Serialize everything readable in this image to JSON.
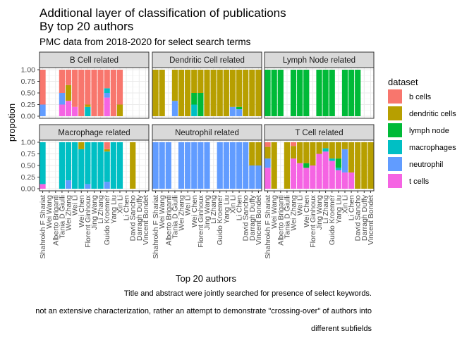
{
  "chart_data": {
    "type": "bar",
    "stacked": true,
    "title": "Additional layer of classification of publications\nBy top 20 authors",
    "subtitle": "PMC data from 2018-2020 for select search terms",
    "xlabel": "Top 20 authors",
    "ylabel": "propotion",
    "ylim": [
      0,
      1
    ],
    "yticks": [
      "0.00",
      "0.25",
      "0.50",
      "0.75",
      "1.00"
    ],
    "grid": true,
    "legend_position": "right",
    "legend_title": "dataset",
    "caption": [
      "Title and abstract were jointly searched for presence of select keywords.",
      "not an extensive characterization, rather an attempt to demonstrate \"crossing-over\" of authors into",
      "different subfields"
    ],
    "categories": [
      "Shahrokh F Shariat",
      "Wei Wang",
      "Alberto Briganti",
      "Tania D Giulli",
      "Wei Zhang",
      "Wei Li",
      "Wei Chen",
      "Florent Ginhoux",
      "Jing Wang",
      "Li Zhang",
      "Guido Kroemer",
      "Yang Liu",
      "Xin Li",
      "Li Chen",
      "David Sancho",
      "Darragh Duffy",
      "Vincent Bondet"
    ],
    "series_order": [
      "t cells",
      "neutrophil",
      "macrophages",
      "lymph node",
      "dendritic cells",
      "b cells"
    ],
    "colors": {
      "b cells": "#F8766D",
      "dendritic cells": "#B79F00",
      "lymph node": "#00BA38",
      "macrophages": "#00BFC4",
      "neutrophil": "#619CFF",
      "t cells": "#F564E3"
    },
    "panels": [
      {
        "title": "B Cell related",
        "bars": [
          {
            "t cells": 0,
            "neutrophil": 0.25,
            "macrophages": 0,
            "lymph node": 0,
            "dendritic cells": 0,
            "b cells": 0.75
          },
          null,
          null,
          {
            "t cells": 0.25,
            "neutrophil": 0.25,
            "macrophages": 0,
            "lymph node": 0,
            "dendritic cells": 0,
            "b cells": 0.5
          },
          {
            "t cells": 0.33,
            "neutrophil": 0,
            "macrophages": 0,
            "lymph node": 0,
            "dendritic cells": 0.34,
            "b cells": 0.33
          },
          {
            "t cells": 0.2,
            "neutrophil": 0,
            "macrophages": 0,
            "lymph node": 0,
            "dendritic cells": 0,
            "b cells": 0.8
          },
          {
            "t cells": 0,
            "neutrophil": 0,
            "macrophages": 0,
            "lymph node": 0,
            "dendritic cells": 0,
            "b cells": 1.0
          },
          {
            "t cells": 0,
            "neutrophil": 0,
            "macrophages": 0.2,
            "lymph node": 0,
            "dendritic cells": 0.05,
            "b cells": 0.75
          },
          {
            "t cells": 0,
            "neutrophil": 0,
            "macrophages": 0,
            "lymph node": 0,
            "dendritic cells": 0,
            "b cells": 1.0
          },
          {
            "t cells": 0,
            "neutrophil": 0,
            "macrophages": 0,
            "lymph node": 0,
            "dendritic cells": 0,
            "b cells": 1.0
          },
          {
            "t cells": 0.4,
            "neutrophil": 0.1,
            "macrophages": 0.1,
            "lymph node": 0,
            "dendritic cells": 0,
            "b cells": 0.4
          },
          {
            "t cells": 0,
            "neutrophil": 0,
            "macrophages": 0,
            "lymph node": 0,
            "dendritic cells": 0,
            "b cells": 1.0
          },
          {
            "t cells": 0,
            "neutrophil": 0,
            "macrophages": 0,
            "lymph node": 0,
            "dendritic cells": 0.25,
            "b cells": 0.75
          },
          null,
          null,
          null,
          null
        ]
      },
      {
        "title": "Dendritic Cell related",
        "bars": [
          {
            "t cells": 0,
            "neutrophil": 0,
            "macrophages": 0,
            "lymph node": 0,
            "dendritic cells": 1.0,
            "b cells": 0
          },
          {
            "t cells": 0,
            "neutrophil": 0,
            "macrophages": 0,
            "lymph node": 0,
            "dendritic cells": 1.0,
            "b cells": 0
          },
          null,
          {
            "t cells": 0,
            "neutrophil": 0.33,
            "macrophages": 0,
            "lymph node": 0,
            "dendritic cells": 0.67,
            "b cells": 0
          },
          {
            "t cells": 0,
            "neutrophil": 0,
            "macrophages": 0,
            "lymph node": 0,
            "dendritic cells": 1.0,
            "b cells": 0
          },
          {
            "t cells": 0,
            "neutrophil": 0,
            "macrophages": 0,
            "lymph node": 0,
            "dendritic cells": 1.0,
            "b cells": 0
          },
          {
            "t cells": 0,
            "neutrophil": 0,
            "macrophages": 0.25,
            "lymph node": 0.25,
            "dendritic cells": 0.5,
            "b cells": 0
          },
          {
            "t cells": 0,
            "neutrophil": 0,
            "macrophages": 0,
            "lymph node": 0.5,
            "dendritic cells": 0.5,
            "b cells": 0
          },
          {
            "t cells": 0,
            "neutrophil": 0,
            "macrophages": 0,
            "lymph node": 0,
            "dendritic cells": 1.0,
            "b cells": 0
          },
          {
            "t cells": 0,
            "neutrophil": 0,
            "macrophages": 0,
            "lymph node": 0,
            "dendritic cells": 1.0,
            "b cells": 0
          },
          {
            "t cells": 0,
            "neutrophil": 0,
            "macrophages": 0,
            "lymph node": 0,
            "dendritic cells": 1.0,
            "b cells": 0
          },
          {
            "t cells": 0,
            "neutrophil": 0,
            "macrophages": 0,
            "lymph node": 0,
            "dendritic cells": 1.0,
            "b cells": 0
          },
          {
            "t cells": 0,
            "neutrophil": 0.2,
            "macrophages": 0,
            "lymph node": 0,
            "dendritic cells": 0.8,
            "b cells": 0
          },
          {
            "t cells": 0,
            "neutrophil": 0.15,
            "macrophages": 0,
            "lymph node": 0.05,
            "dendritic cells": 0.8,
            "b cells": 0
          },
          {
            "t cells": 0,
            "neutrophil": 0,
            "macrophages": 0,
            "lymph node": 0,
            "dendritic cells": 1.0,
            "b cells": 0
          },
          {
            "t cells": 0,
            "neutrophil": 0,
            "macrophages": 0,
            "lymph node": 0,
            "dendritic cells": 1.0,
            "b cells": 0
          },
          {
            "t cells": 0,
            "neutrophil": 0,
            "macrophages": 0,
            "lymph node": 0,
            "dendritic cells": 1.0,
            "b cells": 0
          }
        ]
      },
      {
        "title": "Lymph Node related",
        "bars": [
          {
            "t cells": 0,
            "neutrophil": 0,
            "macrophages": 0,
            "lymph node": 1.0,
            "dendritic cells": 0,
            "b cells": 0
          },
          {
            "t cells": 0,
            "neutrophil": 0,
            "macrophages": 0,
            "lymph node": 1.0,
            "dendritic cells": 0,
            "b cells": 0
          },
          {
            "t cells": 0,
            "neutrophil": 0,
            "macrophages": 0,
            "lymph node": 1.0,
            "dendritic cells": 0,
            "b cells": 0
          },
          null,
          {
            "t cells": 0,
            "neutrophil": 0,
            "macrophages": 0,
            "lymph node": 1.0,
            "dendritic cells": 0,
            "b cells": 0
          },
          {
            "t cells": 0,
            "neutrophil": 0,
            "macrophages": 0,
            "lymph node": 1.0,
            "dendritic cells": 0,
            "b cells": 0
          },
          {
            "t cells": 0,
            "neutrophil": 0,
            "macrophages": 0,
            "lymph node": 1.0,
            "dendritic cells": 0,
            "b cells": 0
          },
          null,
          {
            "t cells": 0,
            "neutrophil": 0,
            "macrophages": 0,
            "lymph node": 1.0,
            "dendritic cells": 0,
            "b cells": 0
          },
          {
            "t cells": 0,
            "neutrophil": 0,
            "macrophages": 0,
            "lymph node": 1.0,
            "dendritic cells": 0,
            "b cells": 0
          },
          {
            "t cells": 0,
            "neutrophil": 0,
            "macrophages": 0,
            "lymph node": 1.0,
            "dendritic cells": 0,
            "b cells": 0
          },
          null,
          {
            "t cells": 0,
            "neutrophil": 0,
            "macrophages": 0,
            "lymph node": 1.0,
            "dendritic cells": 0,
            "b cells": 0
          },
          {
            "t cells": 0,
            "neutrophil": 0,
            "macrophages": 0,
            "lymph node": 1.0,
            "dendritic cells": 0,
            "b cells": 0
          },
          {
            "t cells": 0,
            "neutrophil": 0,
            "macrophages": 0,
            "lymph node": 1.0,
            "dendritic cells": 0,
            "b cells": 0
          },
          null,
          null
        ]
      },
      {
        "title": "Macrophage related",
        "bars": [
          {
            "t cells": 0.1,
            "neutrophil": 0,
            "macrophages": 0.9,
            "lymph node": 0,
            "dendritic cells": 0,
            "b cells": 0
          },
          null,
          null,
          {
            "t cells": 0,
            "neutrophil": 0,
            "macrophages": 1.0,
            "lymph node": 0,
            "dendritic cells": 0,
            "b cells": 0
          },
          {
            "t cells": 0,
            "neutrophil": 0.18,
            "macrophages": 0.82,
            "lymph node": 0,
            "dendritic cells": 0,
            "b cells": 0
          },
          {
            "t cells": 0,
            "neutrophil": 0,
            "macrophages": 1.0,
            "lymph node": 0,
            "dendritic cells": 0,
            "b cells": 0
          },
          {
            "t cells": 0,
            "neutrophil": 0,
            "macrophages": 0.85,
            "lymph node": 0,
            "dendritic cells": 0.15,
            "b cells": 0
          },
          {
            "t cells": 0,
            "neutrophil": 0.1,
            "macrophages": 0.9,
            "lymph node": 0,
            "dendritic cells": 0,
            "b cells": 0
          },
          {
            "t cells": 0,
            "neutrophil": 0,
            "macrophages": 1.0,
            "lymph node": 0,
            "dendritic cells": 0,
            "b cells": 0
          },
          {
            "t cells": 0,
            "neutrophil": 0,
            "macrophages": 1.0,
            "lymph node": 0,
            "dendritic cells": 0,
            "b cells": 0
          },
          {
            "t cells": 0,
            "neutrophil": 0.15,
            "macrophages": 0.65,
            "lymph node": 0,
            "dendritic cells": 0.05,
            "b cells": 0.15
          },
          {
            "t cells": 0,
            "neutrophil": 0,
            "macrophages": 1.0,
            "lymph node": 0,
            "dendritic cells": 0,
            "b cells": 0
          },
          {
            "t cells": 0,
            "neutrophil": 0,
            "macrophages": 1.0,
            "lymph node": 0,
            "dendritic cells": 0,
            "b cells": 0
          },
          null,
          {
            "t cells": 0,
            "neutrophil": 0,
            "macrophages": 0,
            "lymph node": 0,
            "dendritic cells": 1.0,
            "b cells": 0
          },
          null,
          null
        ]
      },
      {
        "title": "Neutrophil related",
        "bars": [
          {
            "t cells": 0,
            "neutrophil": 1.0,
            "macrophages": 0,
            "lymph node": 0,
            "dendritic cells": 0,
            "b cells": 0
          },
          {
            "t cells": 0,
            "neutrophil": 1.0,
            "macrophages": 0,
            "lymph node": 0,
            "dendritic cells": 0,
            "b cells": 0
          },
          {
            "t cells": 0,
            "neutrophil": 1.0,
            "macrophages": 0,
            "lymph node": 0,
            "dendritic cells": 0,
            "b cells": 0
          },
          null,
          {
            "t cells": 0,
            "neutrophil": 1.0,
            "macrophages": 0,
            "lymph node": 0,
            "dendritic cells": 0,
            "b cells": 0
          },
          {
            "t cells": 0,
            "neutrophil": 1.0,
            "macrophages": 0,
            "lymph node": 0,
            "dendritic cells": 0,
            "b cells": 0
          },
          {
            "t cells": 0,
            "neutrophil": 1.0,
            "macrophages": 0,
            "lymph node": 0,
            "dendritic cells": 0,
            "b cells": 0
          },
          {
            "t cells": 0,
            "neutrophil": 1.0,
            "macrophages": 0,
            "lymph node": 0,
            "dendritic cells": 0,
            "b cells": 0
          },
          {
            "t cells": 0,
            "neutrophil": 1.0,
            "macrophages": 0,
            "lymph node": 0,
            "dendritic cells": 0,
            "b cells": 0
          },
          null,
          {
            "t cells": 0,
            "neutrophil": 1.0,
            "macrophages": 0,
            "lymph node": 0,
            "dendritic cells": 0,
            "b cells": 0
          },
          {
            "t cells": 0,
            "neutrophil": 1.0,
            "macrophages": 0,
            "lymph node": 0,
            "dendritic cells": 0,
            "b cells": 0
          },
          {
            "t cells": 0,
            "neutrophil": 1.0,
            "macrophages": 0,
            "lymph node": 0,
            "dendritic cells": 0,
            "b cells": 0
          },
          {
            "t cells": 0,
            "neutrophil": 1.0,
            "macrophages": 0,
            "lymph node": 0,
            "dendritic cells": 0,
            "b cells": 0
          },
          {
            "t cells": 0,
            "neutrophil": 1.0,
            "macrophages": 0,
            "lymph node": 0,
            "dendritic cells": 0,
            "b cells": 0
          },
          {
            "t cells": 0,
            "neutrophil": 0.5,
            "macrophages": 0,
            "lymph node": 0,
            "dendritic cells": 0.5,
            "b cells": 0
          },
          {
            "t cells": 0,
            "neutrophil": 0.5,
            "macrophages": 0,
            "lymph node": 0,
            "dendritic cells": 0.5,
            "b cells": 0
          }
        ]
      },
      {
        "title": "T Cell related",
        "bars": [
          {
            "t cells": 0.45,
            "neutrophil": 0.2,
            "macrophages": 0,
            "lymph node": 0,
            "dendritic cells": 0.25,
            "b cells": 0.1
          },
          {
            "t cells": 0,
            "neutrophil": 0,
            "macrophages": 0,
            "lymph node": 0,
            "dendritic cells": 1.0,
            "b cells": 0
          },
          null,
          {
            "t cells": 0,
            "neutrophil": 0,
            "macrophages": 0,
            "lymph node": 0,
            "dendritic cells": 1.0,
            "b cells": 0
          },
          {
            "t cells": 0.65,
            "neutrophil": 0,
            "macrophages": 0,
            "lymph node": 0,
            "dendritic cells": 0.27,
            "b cells": 0.08
          },
          {
            "t cells": 0.55,
            "neutrophil": 0,
            "macrophages": 0,
            "lymph node": 0,
            "dendritic cells": 0.45,
            "b cells": 0
          },
          {
            "t cells": 0.45,
            "neutrophil": 0,
            "macrophages": 0,
            "lymph node": 0.1,
            "dendritic cells": 0.45,
            "b cells": 0
          },
          {
            "t cells": 0.5,
            "neutrophil": 0,
            "macrophages": 0,
            "lymph node": 0,
            "dendritic cells": 0.5,
            "b cells": 0
          },
          {
            "t cells": 0.75,
            "neutrophil": 0,
            "macrophages": 0,
            "lymph node": 0,
            "dendritic cells": 0.25,
            "b cells": 0
          },
          {
            "t cells": 0.8,
            "neutrophil": 0,
            "macrophages": 0.07,
            "lymph node": 0,
            "dendritic cells": 0.13,
            "b cells": 0
          },
          {
            "t cells": 0.6,
            "neutrophil": 0,
            "macrophages": 0.05,
            "lymph node": 0,
            "dendritic cells": 0.35,
            "b cells": 0
          },
          {
            "t cells": 0.4,
            "neutrophil": 0,
            "macrophages": 0.05,
            "lymph node": 0.2,
            "dendritic cells": 0.35,
            "b cells": 0
          },
          {
            "t cells": 0.35,
            "neutrophil": 0.5,
            "macrophages": 0,
            "lymph node": 0,
            "dendritic cells": 0.15,
            "b cells": 0
          },
          {
            "t cells": 0.35,
            "neutrophil": 0,
            "macrophages": 0,
            "lymph node": 0,
            "dendritic cells": 0.65,
            "b cells": 0
          },
          {
            "t cells": 0,
            "neutrophil": 0,
            "macrophages": 0,
            "lymph node": 0,
            "dendritic cells": 1.0,
            "b cells": 0
          },
          {
            "t cells": 0,
            "neutrophil": 0,
            "macrophages": 0,
            "lymph node": 0,
            "dendritic cells": 1.0,
            "b cells": 0
          },
          {
            "t cells": 0,
            "neutrophil": 0,
            "macrophages": 0,
            "lymph node": 0,
            "dendritic cells": 1.0,
            "b cells": 0
          }
        ]
      }
    ]
  }
}
